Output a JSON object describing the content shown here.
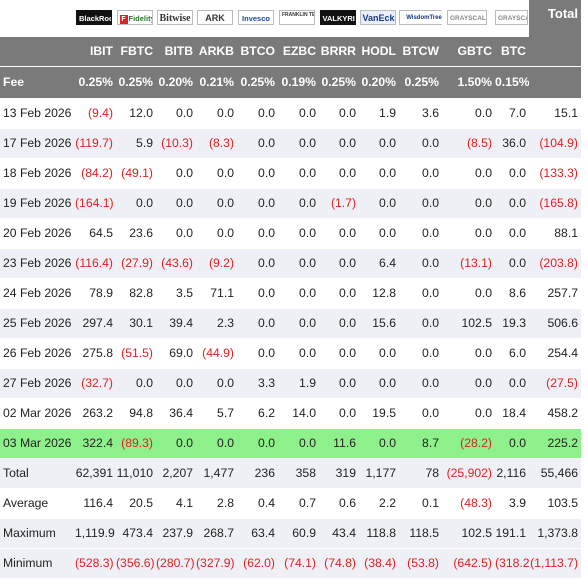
{
  "header": {
    "logos": [
      "BlackRock",
      "Fidelity",
      "Bitwise",
      "ARK",
      "Invesco",
      "FRANKLIN TEMPLETON",
      "VALKYRIE",
      "VanEck",
      "WisdomTree",
      "GRAYSCALE",
      "GRAYSCALE"
    ],
    "total_label": "Total",
    "tickers": [
      "IBIT",
      "FBTC",
      "BITB",
      "ARKB",
      "BTCO",
      "EZBC",
      "BRRR",
      "HODL",
      "BTCW",
      "GBTC",
      "BTC"
    ],
    "fee_label": "Fee",
    "fees": [
      "0.25%",
      "0.25%",
      "0.20%",
      "0.21%",
      "0.25%",
      "0.19%",
      "0.25%",
      "0.20%",
      "0.25%",
      "1.50%",
      "0.15%"
    ]
  },
  "rows": [
    {
      "date": "13 Feb 2026",
      "values": [
        "(9.4)",
        "12.0",
        "0.0",
        "0.0",
        "0.0",
        "0.0",
        "0.0",
        "1.9",
        "3.6",
        "0.0",
        "7.0"
      ],
      "total": "15.1"
    },
    {
      "date": "17 Feb 2026",
      "values": [
        "(119.7)",
        "5.9",
        "(10.3)",
        "(8.3)",
        "0.0",
        "0.0",
        "0.0",
        "0.0",
        "0.0",
        "(8.5)",
        "36.0"
      ],
      "total": "(104.9)"
    },
    {
      "date": "18 Feb 2026",
      "values": [
        "(84.2)",
        "(49.1)",
        "0.0",
        "0.0",
        "0.0",
        "0.0",
        "0.0",
        "0.0",
        "0.0",
        "0.0",
        "0.0"
      ],
      "total": "(133.3)"
    },
    {
      "date": "19 Feb 2026",
      "values": [
        "(164.1)",
        "0.0",
        "0.0",
        "0.0",
        "0.0",
        "0.0",
        "(1.7)",
        "0.0",
        "0.0",
        "0.0",
        "0.0"
      ],
      "total": "(165.8)"
    },
    {
      "date": "20 Feb 2026",
      "values": [
        "64.5",
        "23.6",
        "0.0",
        "0.0",
        "0.0",
        "0.0",
        "0.0",
        "0.0",
        "0.0",
        "0.0",
        "0.0"
      ],
      "total": "88.1"
    },
    {
      "date": "23 Feb 2026",
      "values": [
        "(116.4)",
        "(27.9)",
        "(43.6)",
        "(9.2)",
        "0.0",
        "0.0",
        "0.0",
        "6.4",
        "0.0",
        "(13.1)",
        "0.0"
      ],
      "total": "(203.8)"
    },
    {
      "date": "24 Feb 2026",
      "values": [
        "78.9",
        "82.8",
        "3.5",
        "71.1",
        "0.0",
        "0.0",
        "0.0",
        "12.8",
        "0.0",
        "0.0",
        "8.6"
      ],
      "total": "257.7"
    },
    {
      "date": "25 Feb 2026",
      "values": [
        "297.4",
        "30.1",
        "39.4",
        "2.3",
        "0.0",
        "0.0",
        "0.0",
        "15.6",
        "0.0",
        "102.5",
        "19.3"
      ],
      "total": "506.6"
    },
    {
      "date": "26 Feb 2026",
      "values": [
        "275.8",
        "(51.5)",
        "69.0",
        "(44.9)",
        "0.0",
        "0.0",
        "0.0",
        "0.0",
        "0.0",
        "0.0",
        "6.0"
      ],
      "total": "254.4"
    },
    {
      "date": "27 Feb 2026",
      "values": [
        "(32.7)",
        "0.0",
        "0.0",
        "0.0",
        "3.3",
        "1.9",
        "0.0",
        "0.0",
        "0.0",
        "0.0",
        "0.0"
      ],
      "total": "(27.5)"
    },
    {
      "date": "02 Mar 2026",
      "values": [
        "263.2",
        "94.8",
        "36.4",
        "5.7",
        "6.2",
        "14.0",
        "0.0",
        "19.5",
        "0.0",
        "0.0",
        "18.4"
      ],
      "total": "458.2"
    },
    {
      "date": "03 Mar 2026",
      "values": [
        "322.4",
        "(89.3)",
        "0.0",
        "0.0",
        "0.0",
        "0.0",
        "11.6",
        "0.0",
        "8.7",
        "(28.2)",
        "0.0"
      ],
      "total": "225.2",
      "highlight": true
    }
  ],
  "summary": [
    {
      "label": "Total",
      "values": [
        "62,391",
        "11,010",
        "2,207",
        "1,477",
        "236",
        "358",
        "319",
        "1,177",
        "78",
        "(25,902)",
        "2,116"
      ],
      "total": "55,466"
    },
    {
      "label": "Average",
      "values": [
        "116.4",
        "20.5",
        "4.1",
        "2.8",
        "0.4",
        "0.7",
        "0.6",
        "2.2",
        "0.1",
        "(48.3)",
        "3.9"
      ],
      "total": "103.5"
    },
    {
      "label": "Maximum",
      "values": [
        "1,119.9",
        "473.4",
        "237.9",
        "268.7",
        "63.4",
        "60.9",
        "43.4",
        "118.8",
        "118.5",
        "102.5",
        "191.1"
      ],
      "total": "1,373.8"
    },
    {
      "label": "Minimum",
      "values": [
        "(528.3)",
        "(356.6)",
        "(280.7)",
        "(327.9)",
        "(62.0)",
        "(74.1)",
        "(74.8)",
        "(38.4)",
        "(53.8)",
        "(642.5)",
        "(318.2)"
      ],
      "total": "(1,113.7)"
    }
  ],
  "colors": {
    "header_bg": "#7a7a7a",
    "negative": "#e02020",
    "highlight": "#8ef08a",
    "stripe": "#eef0f6"
  }
}
